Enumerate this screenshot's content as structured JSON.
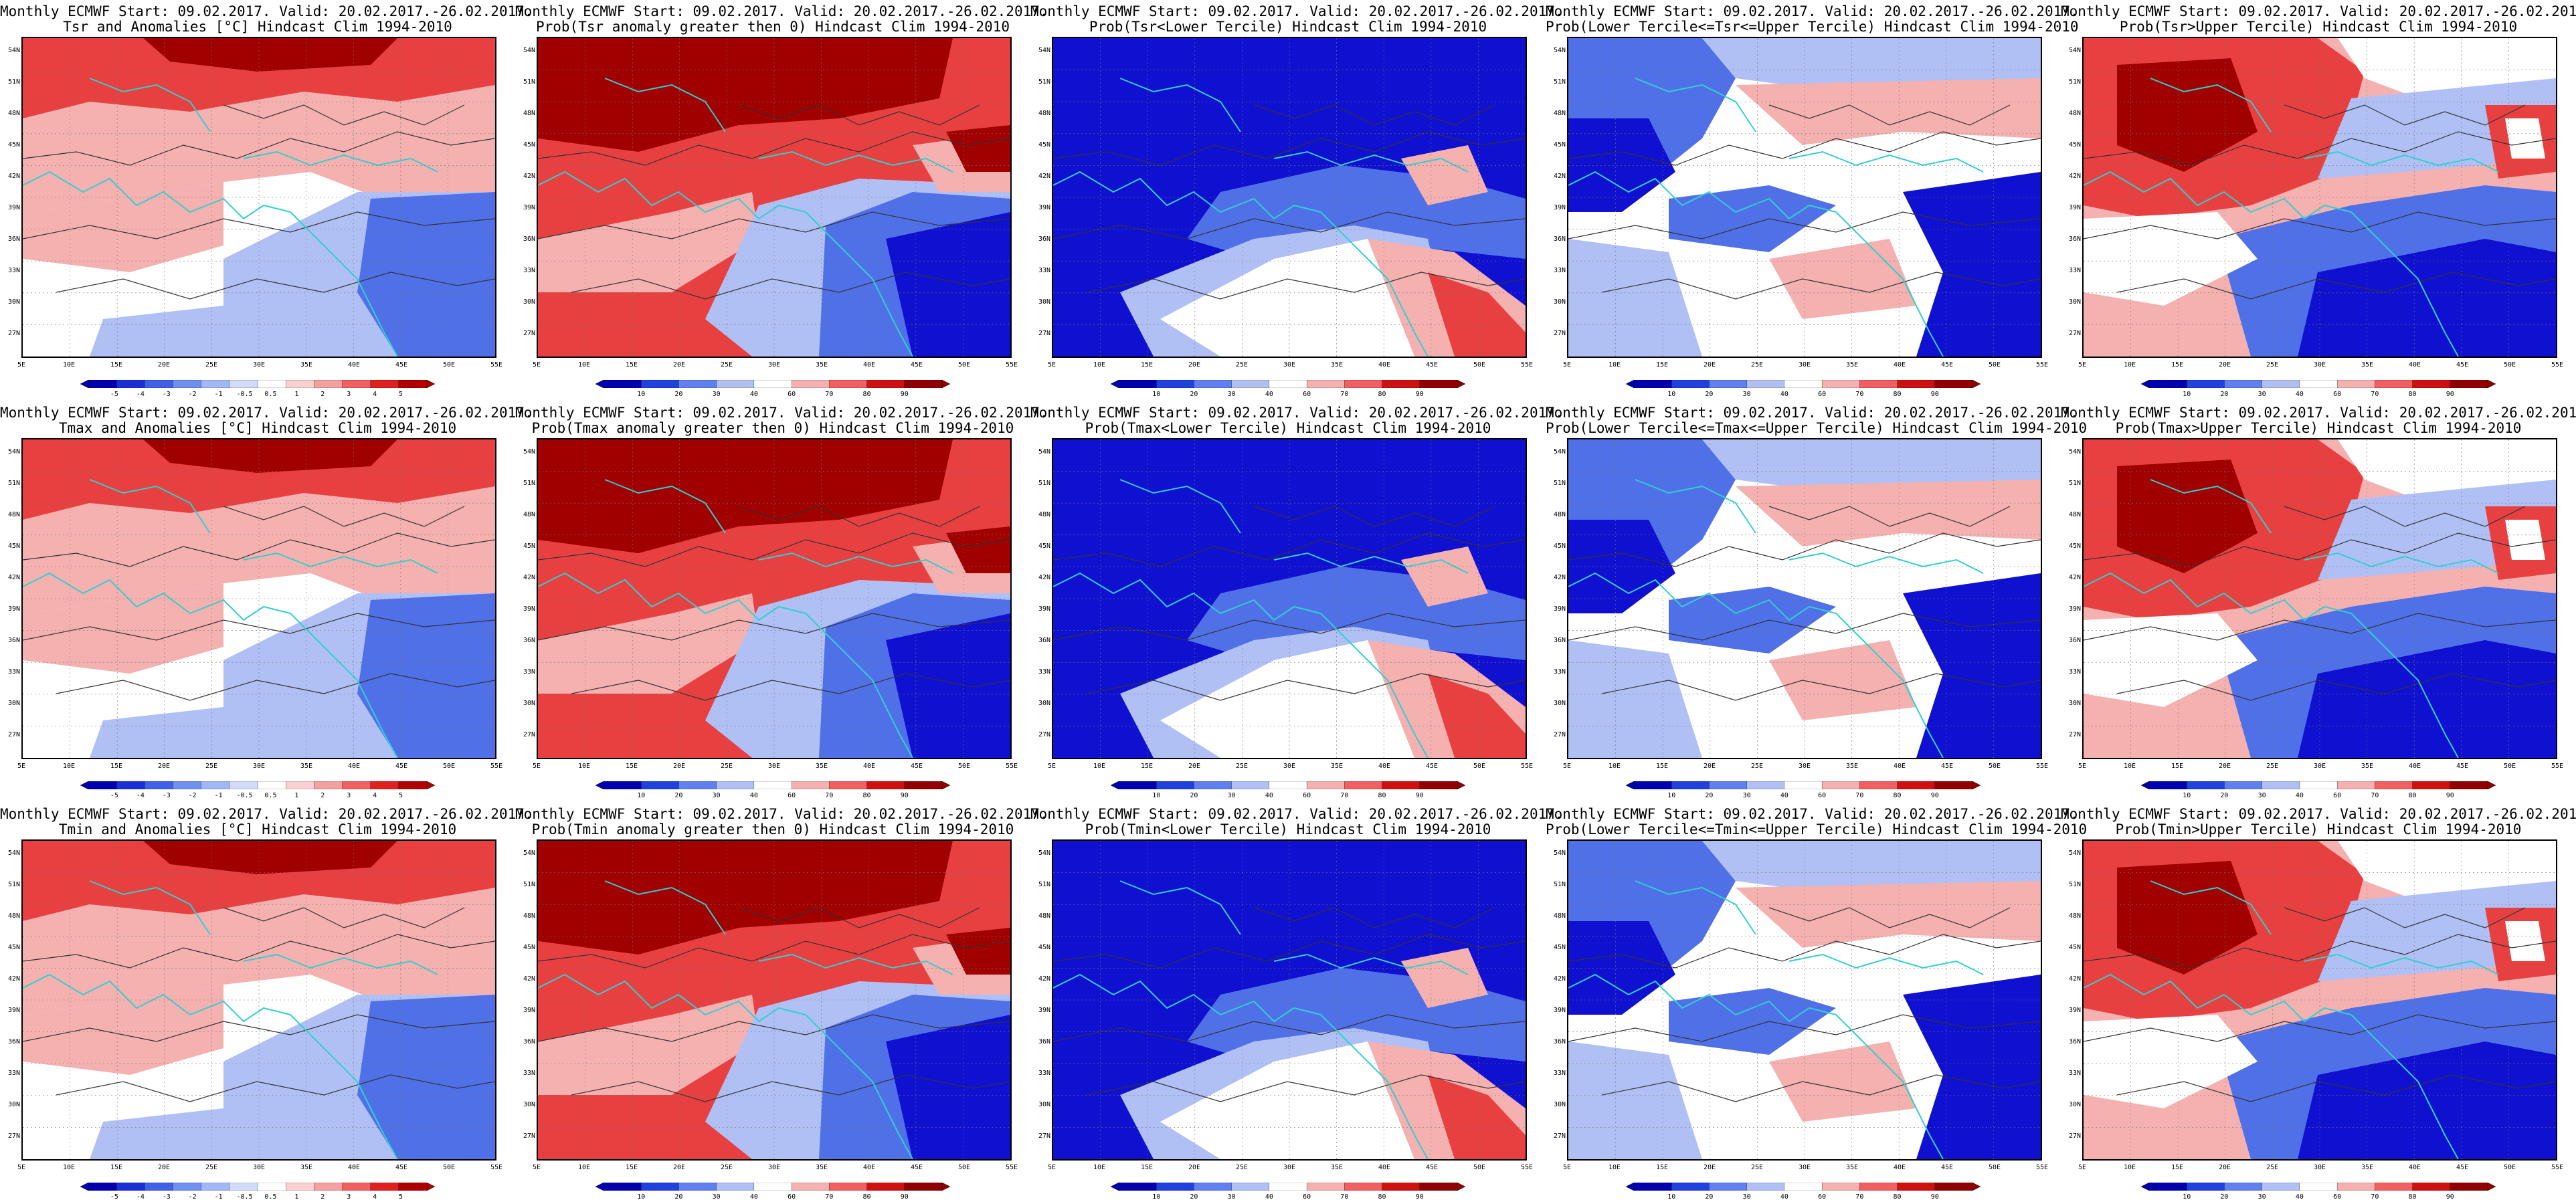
{
  "colors": {
    "blue_dark": "#1010d0",
    "blue_mid": "#5070e8",
    "blue_light": "#b0c0f5",
    "white": "#ffffff",
    "red_light": "#f5b0b0",
    "red_mid": "#e84040",
    "red_dark": "#a00000",
    "coast": "#30d0d0",
    "contour": "#333333"
  },
  "lat_labels": [
    "54N",
    "51N",
    "48N",
    "45N",
    "42N",
    "39N",
    "36N",
    "33N",
    "30N",
    "27N"
  ],
  "lon_labels": [
    "5E",
    "10E",
    "15E",
    "20E",
    "25E",
    "30E",
    "35E",
    "40E",
    "45E",
    "50E",
    "55E"
  ],
  "anomaly_scale": [
    "-5",
    "-4",
    "-3",
    "-2",
    "-1",
    "-0.5",
    "0.5",
    "1",
    "2",
    "3",
    "4",
    "5"
  ],
  "prob_scale": [
    "10",
    "20",
    "30",
    "40",
    "60",
    "70",
    "80",
    "90"
  ],
  "panels": [
    {
      "line1": "Monthly ECMWF Start: 09.02.2017. Valid: 20.02.2017.-26.02.2017.",
      "line2": "Tsr and Anomalies [°C] Hindcast Clim 1994-2010",
      "scale": "anomaly",
      "pattern": "anom"
    },
    {
      "line1": "Monthly ECMWF Start: 09.02.2017. Valid: 20.02.2017.-26.02.2017.",
      "line2": "Prob(Tsr anomaly greater then 0) Hindcast Clim 1994-2010",
      "scale": "prob",
      "pattern": "probpos"
    },
    {
      "line1": "Monthly ECMWF Start: 09.02.2017. Valid: 20.02.2017.-26.02.2017.",
      "line2": "Prob(Tsr<Lower Tercile) Hindcast Clim 1994-2010",
      "scale": "prob",
      "pattern": "lower"
    },
    {
      "line1": "Monthly ECMWF Start: 09.02.2017. Valid: 20.02.2017.-26.02.2017.",
      "line2": "Prob(Lower Tercile<=Tsr<=Upper Tercile) Hindcast Clim 1994-2010",
      "scale": "prob",
      "pattern": "middle"
    },
    {
      "line1": "Monthly ECMWF Start: 09.02.2017. Valid: 20.02.2017.-26.02.2017.",
      "line2": "Prob(Tsr>Upper Tercile) Hindcast Clim 1994-2010",
      "scale": "prob",
      "pattern": "upper"
    },
    {
      "line1": "Monthly ECMWF Start: 09.02.2017. Valid: 20.02.2017.-26.02.2017.",
      "line2": "Tmax and Anomalies [°C] Hindcast Clim 1994-2010",
      "scale": "anomaly",
      "pattern": "anom"
    },
    {
      "line1": "Monthly ECMWF Start: 09.02.2017. Valid: 20.02.2017.-26.02.2017.",
      "line2": "Prob(Tmax anomaly greater then 0) Hindcast Clim 1994-2010",
      "scale": "prob",
      "pattern": "probpos"
    },
    {
      "line1": "Monthly ECMWF Start: 09.02.2017. Valid: 20.02.2017.-26.02.2017.",
      "line2": "Prob(Tmax<Lower Tercile) Hindcast Clim 1994-2010",
      "scale": "prob",
      "pattern": "lower"
    },
    {
      "line1": "Monthly ECMWF Start: 09.02.2017. Valid: 20.02.2017.-26.02.2017.",
      "line2": "Prob(Lower Tercile<=Tmax<=Upper Tercile) Hindcast Clim 1994-2010",
      "scale": "prob",
      "pattern": "middle"
    },
    {
      "line1": "Monthly ECMWF Start: 09.02.2017. Valid: 20.02.2017.-26.02.2017.",
      "line2": "Prob(Tmax>Upper Tercile) Hindcast Clim 1994-2010",
      "scale": "prob",
      "pattern": "upper"
    },
    {
      "line1": "Monthly ECMWF Start: 09.02.2017. Valid: 20.02.2017.-26.02.2017.",
      "line2": "Tmin and Anomalies [°C] Hindcast Clim 1994-2010",
      "scale": "anomaly",
      "pattern": "anom"
    },
    {
      "line1": "Monthly ECMWF Start: 09.02.2017. Valid: 20.02.2017.-26.02.2017.",
      "line2": "Prob(Tmin anomaly greater then 0) Hindcast Clim 1994-2010",
      "scale": "prob",
      "pattern": "probpos"
    },
    {
      "line1": "Monthly ECMWF Start: 09.02.2017. Valid: 20.02.2017.-26.02.2017.",
      "line2": "Prob(Tmin<Lower Tercile) Hindcast Clim 1994-2010",
      "scale": "prob",
      "pattern": "lower"
    },
    {
      "line1": "Monthly ECMWF Start: 09.02.2017. Valid: 20.02.2017.-26.02.2017.",
      "line2": "Prob(Lower Tercile<=Tmin<=Upper Tercile) Hindcast Clim 1994-2010",
      "scale": "prob",
      "pattern": "middle"
    },
    {
      "line1": "Monthly ECMWF Start: 09.02.2017. Valid: 20.02.2017.-26.02.2017.",
      "line2": "Prob(Tmin>Upper Tercile) Hindcast Clim 1994-2010",
      "scale": "prob",
      "pattern": "upper"
    }
  ]
}
